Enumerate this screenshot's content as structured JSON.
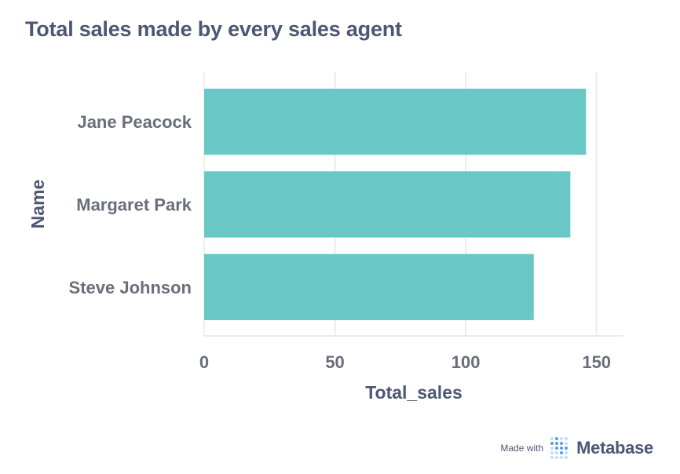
{
  "title": "Total sales made by every sales agent",
  "footer": {
    "made_with": "Made with",
    "brand": "Metabase"
  },
  "colors": {
    "bar": "#69c8c6",
    "text": "#4c5773",
    "grid": "#ebebeb",
    "label": "#696e7b",
    "logo": "#509ee3"
  },
  "chart_data": {
    "type": "bar",
    "orientation": "horizontal",
    "categories": [
      "Jane Peacock",
      "Margaret Park",
      "Steve Johnson"
    ],
    "values": [
      146,
      140,
      126
    ],
    "xlabel": "Total_sales",
    "ylabel": "Name",
    "xlim": [
      0,
      160
    ],
    "xticks": [
      0,
      50,
      100,
      150
    ],
    "grid": true,
    "legend": "none"
  }
}
